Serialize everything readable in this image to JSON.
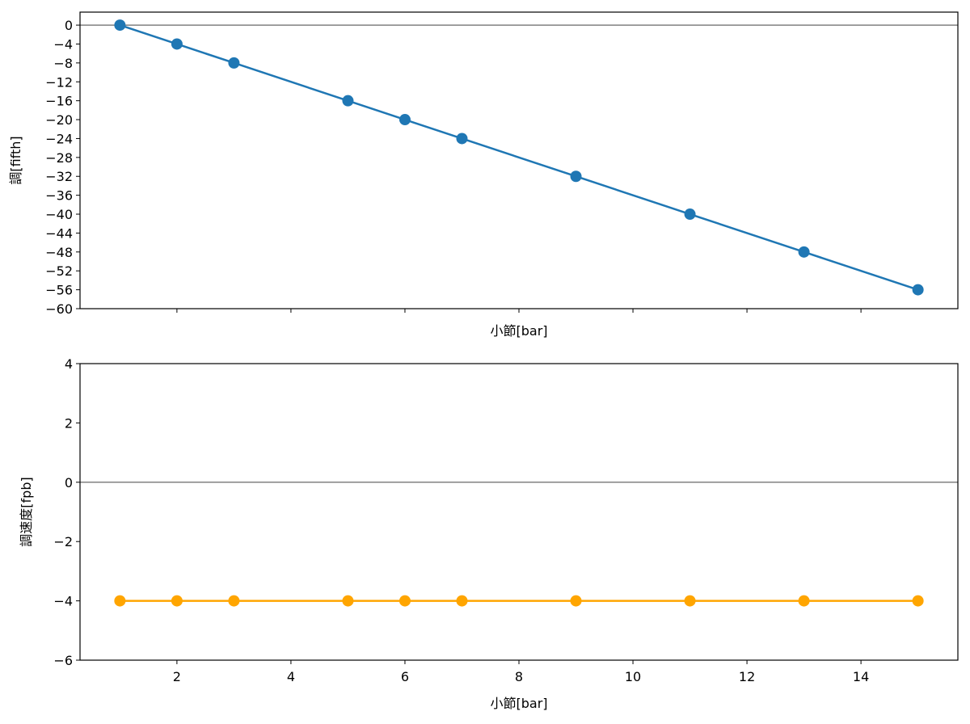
{
  "chart_data": [
    {
      "type": "line",
      "xlabel": "小節[bar]",
      "ylabel": "調[fifth]",
      "x": [
        1,
        2,
        3,
        5,
        6,
        7,
        9,
        11,
        13,
        15
      ],
      "values": [
        0,
        -4,
        -8,
        -16,
        -20,
        -24,
        -32,
        -40,
        -48,
        -56
      ],
      "color": "#1f77b4",
      "xlim": [
        0.3,
        15.7
      ],
      "xticks": [
        2,
        4,
        6,
        8,
        10,
        12,
        14
      ],
      "show_xticklabels": false,
      "ylim": [
        -60,
        2.75
      ],
      "yticks": [
        {
          "value": -60,
          "label": "−60"
        },
        {
          "value": -56,
          "label": "−56"
        },
        {
          "value": -52,
          "label": "−52"
        },
        {
          "value": -48,
          "label": "−48"
        },
        {
          "value": -44,
          "label": "−44"
        },
        {
          "value": -40,
          "label": "−40"
        },
        {
          "value": -36,
          "label": "−36"
        },
        {
          "value": -32,
          "label": "−32"
        },
        {
          "value": -28,
          "label": "−28"
        },
        {
          "value": -24,
          "label": "−24"
        },
        {
          "value": -20,
          "label": "−20"
        },
        {
          "value": -16,
          "label": "−16"
        },
        {
          "value": -12,
          "label": "−12"
        },
        {
          "value": -8,
          "label": "−8"
        },
        {
          "value": -4,
          "label": "−4"
        },
        0
      ],
      "axhline": 0
    },
    {
      "type": "line",
      "xlabel": "小節[bar]",
      "ylabel": "調速度[fpb]",
      "x": [
        1,
        2,
        3,
        5,
        6,
        7,
        9,
        11,
        13,
        15
      ],
      "values": [
        -4,
        -4,
        -4,
        -4,
        -4,
        -4,
        -4,
        -4,
        -4,
        -4
      ],
      "color": "#ffa500",
      "xlim": [
        0.3,
        15.7
      ],
      "xticks": [
        2,
        4,
        6,
        8,
        10,
        12,
        14
      ],
      "show_xticklabels": true,
      "ylim": [
        -6,
        4
      ],
      "yticks": [
        {
          "value": -6,
          "label": "−6"
        },
        {
          "value": -4,
          "label": "−4"
        },
        {
          "value": -2,
          "label": "−2"
        },
        0,
        2,
        4
      ],
      "axhline": 0
    }
  ]
}
